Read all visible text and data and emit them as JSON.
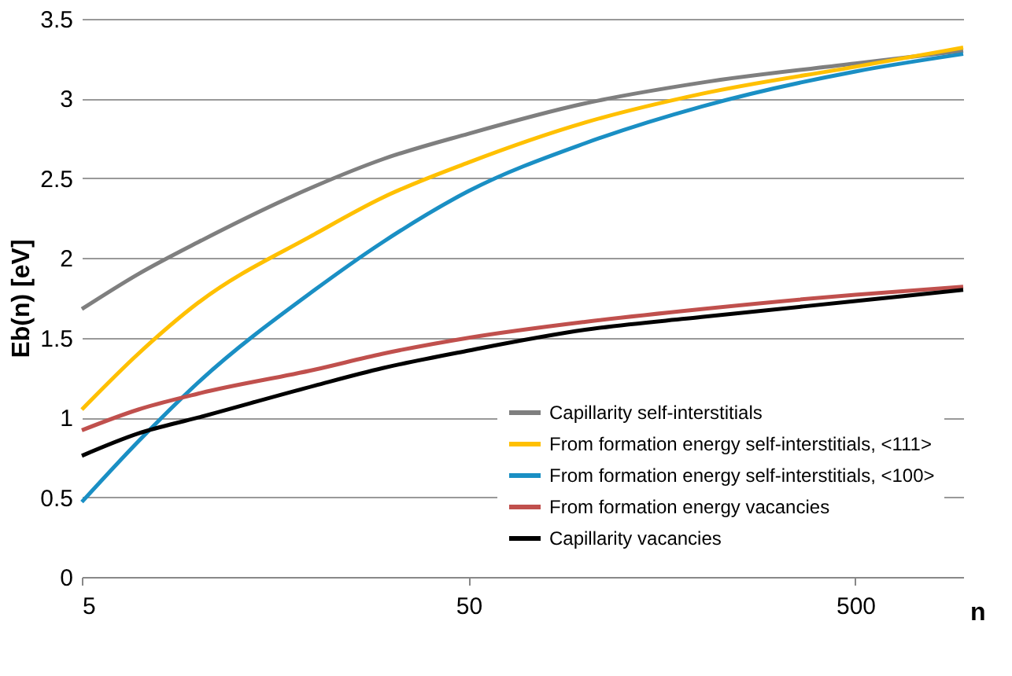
{
  "chart_data": {
    "type": "line",
    "xlabel": "n",
    "ylabel": "Eb(n) [eV]",
    "x": [
      5,
      7,
      10,
      20,
      30,
      50,
      100,
      200,
      500,
      950
    ],
    "series": [
      {
        "name": "Capillarity self-interstitials",
        "color": "#7f7f7f",
        "values": [
          1.68,
          1.9,
          2.1,
          2.45,
          2.62,
          2.78,
          2.97,
          3.1,
          3.22,
          3.3
        ]
      },
      {
        "name": "From formation energy self-interstitials, <111>",
        "color": "#ffc000",
        "values": [
          1.05,
          1.4,
          1.72,
          2.15,
          2.38,
          2.6,
          2.85,
          3.03,
          3.2,
          3.32
        ]
      },
      {
        "name": "From formation energy self-interstitials, <100>",
        "color": "#1a8fc4",
        "values": [
          0.47,
          0.85,
          1.22,
          1.8,
          2.1,
          2.42,
          2.72,
          2.95,
          3.17,
          3.28
        ]
      },
      {
        "name": "From formation energy vacancies",
        "color": "#c0504d",
        "values": [
          0.92,
          1.05,
          1.15,
          1.3,
          1.4,
          1.5,
          1.6,
          1.68,
          1.77,
          1.82
        ]
      },
      {
        "name": "Capillarity vacancies",
        "color": "#000000",
        "values": [
          0.76,
          0.9,
          1.0,
          1.2,
          1.31,
          1.42,
          1.55,
          1.63,
          1.73,
          1.8
        ]
      }
    ],
    "log": "x",
    "xlim": [
      5,
      950
    ],
    "xticks": [
      5,
      50,
      500
    ],
    "ylim": [
      0,
      3.5
    ],
    "yticks": [
      0,
      0.5,
      1,
      1.5,
      2,
      2.5,
      3,
      3.5
    ],
    "grid": "y",
    "legend": "bottom right",
    "marker": "none",
    "line_style": "solid"
  }
}
